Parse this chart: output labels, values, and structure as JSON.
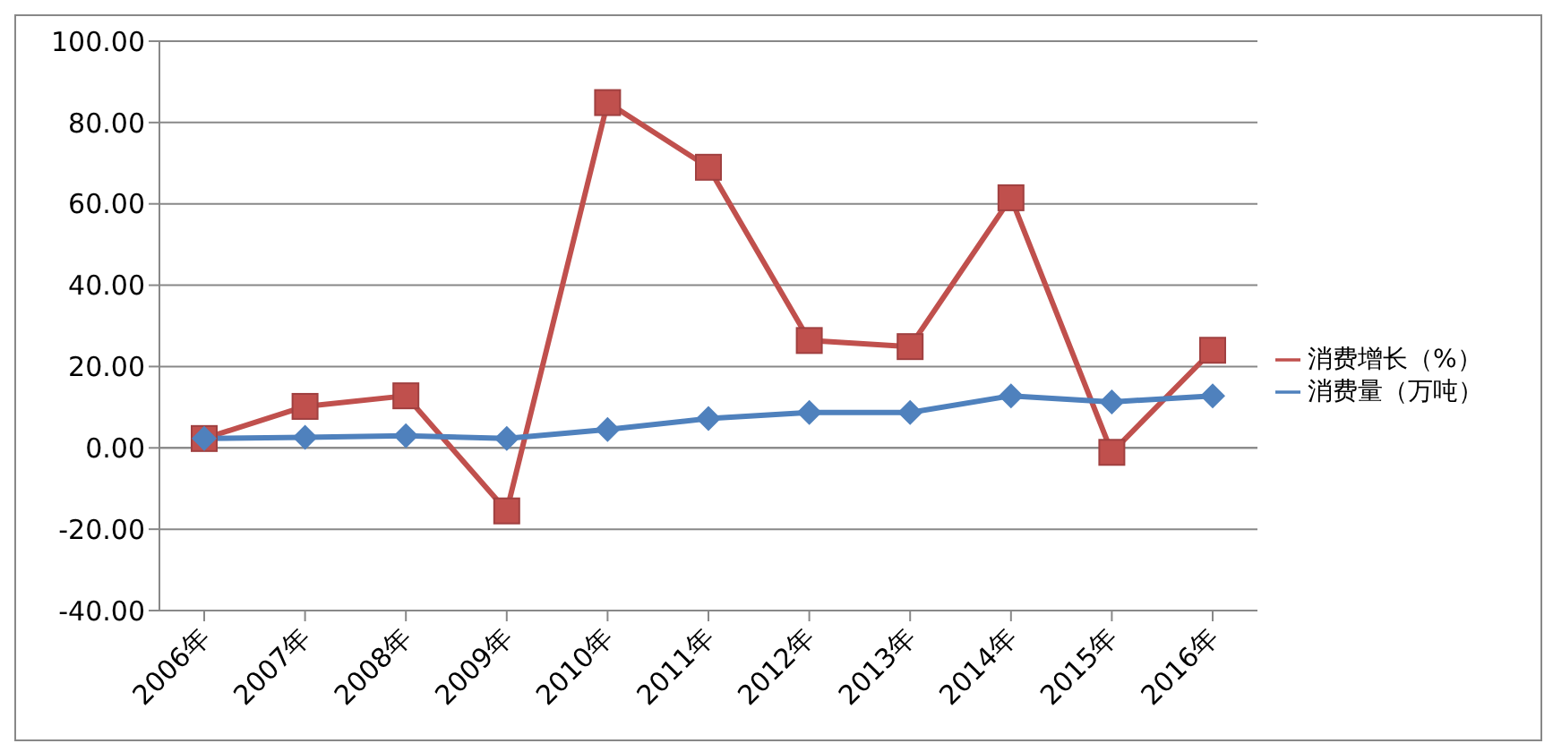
{
  "chart_data": {
    "type": "line",
    "categories": [
      "2006年",
      "2007年",
      "2008年",
      "2009年",
      "2010年",
      "2011年",
      "2012年",
      "2013年",
      "2014年",
      "2015年",
      "2016年"
    ],
    "series": [
      {
        "name": "消费增长（%）",
        "color": "#c0504d",
        "marker": "square",
        "values": [
          2.3,
          10.2,
          12.8,
          -15.5,
          84.9,
          69.0,
          26.4,
          24.9,
          61.5,
          -1.1,
          24.0
        ]
      },
      {
        "name": "消费量（万吨）",
        "color": "#4f81bd",
        "marker": "diamond",
        "values": [
          2.3,
          2.6,
          3.0,
          2.3,
          4.5,
          7.2,
          8.7,
          8.7,
          12.8,
          11.3,
          12.8
        ]
      }
    ],
    "ylim": [
      -40,
      100
    ],
    "yticks": [
      {
        "value": -40,
        "label": "-40.00"
      },
      {
        "value": -20,
        "label": "-20.00"
      },
      {
        "value": 0,
        "label": "0.00"
      },
      {
        "value": 20,
        "label": "20.00"
      },
      {
        "value": 40,
        "label": "40.00"
      },
      {
        "value": 60,
        "label": "60.00"
      },
      {
        "value": 80,
        "label": "80.00"
      },
      {
        "value": 100,
        "label": "100.00"
      }
    ],
    "grid": "y",
    "legend": "right",
    "line_style": "solid"
  }
}
